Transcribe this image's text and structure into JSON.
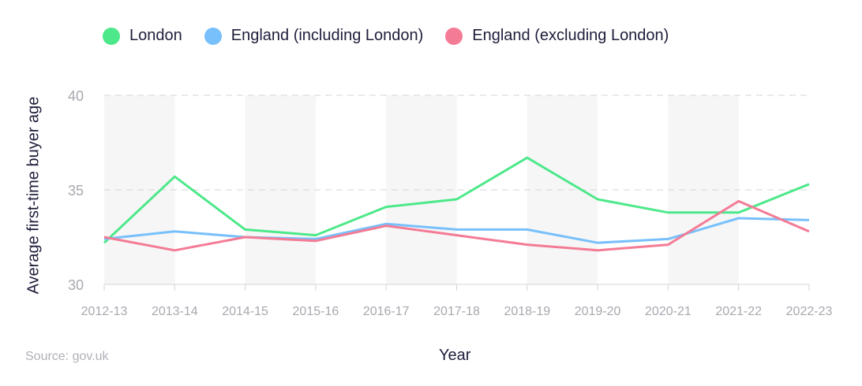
{
  "chart_data": {
    "type": "line",
    "xlabel": "Year",
    "ylabel": "Average first-time buyer age",
    "ylim": [
      30,
      40
    ],
    "yticks": [
      30,
      35,
      40
    ],
    "grid": true,
    "legend_position": "top-left",
    "categories": [
      "2012-13",
      "2013-14",
      "2014-15",
      "2015-16",
      "2016-17",
      "2017-18",
      "2018-19",
      "2019-20",
      "2020-21",
      "2021-22",
      "2022-23"
    ],
    "series": [
      {
        "name": "London",
        "color": "#4de88a",
        "values": [
          32.2,
          35.7,
          32.9,
          32.6,
          34.1,
          34.5,
          36.7,
          34.5,
          33.8,
          33.8,
          35.3
        ]
      },
      {
        "name": "England (including London)",
        "color": "#78c0fb",
        "values": [
          32.4,
          32.8,
          32.5,
          32.4,
          33.2,
          32.9,
          32.9,
          32.2,
          32.4,
          33.5,
          33.4
        ]
      },
      {
        "name": "England (excluding London)",
        "color": "#f47b95",
        "values": [
          32.5,
          31.8,
          32.5,
          32.3,
          33.1,
          32.6,
          32.1,
          31.8,
          32.1,
          34.4,
          32.8
        ]
      }
    ]
  },
  "source": "Source: gov.uk"
}
